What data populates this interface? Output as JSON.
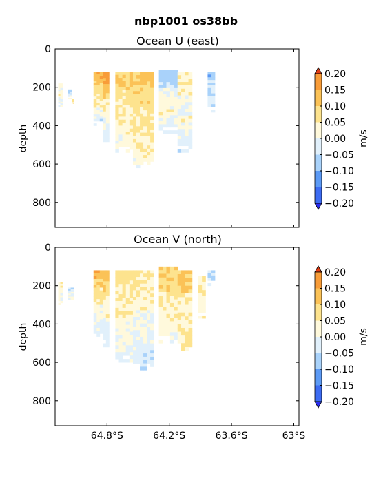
{
  "figure": {
    "title": "nbp1001 os38bb"
  },
  "chart_data": [
    {
      "type": "heatmap",
      "title": "Ocean U (east)",
      "xlabel": "",
      "ylabel": "depth",
      "xlim": [
        -65.3,
        -62.95
      ],
      "ylim": [
        930,
        0
      ],
      "y_ticks": [
        0,
        200,
        400,
        600,
        800
      ],
      "y_tick_labels": [
        "0",
        "200",
        "400",
        "600",
        "800"
      ],
      "x_ticks": [
        -64.8,
        -64.2,
        -63.6,
        -63.0
      ],
      "x_tick_labels": [],
      "colorbar": {
        "label": "m/s",
        "levels": [
          -0.2,
          -0.15,
          -0.1,
          -0.05,
          0.0,
          0.05,
          0.1,
          0.15,
          0.2
        ],
        "tick_labels": [
          "0.20",
          "0.15",
          "0.10",
          "0.05",
          "0.00",
          "−0.05",
          "−0.10",
          "−0.15",
          "−0.20"
        ],
        "colors": [
          "#2a2cf0",
          "#3d6cf2",
          "#5c9af5",
          "#a9d2fa",
          "#e1f0fb",
          "#fff9dc",
          "#fde38e",
          "#fbc257",
          "#f89c38",
          "#f26b22",
          "#e33d14"
        ]
      },
      "sections": [
        {
          "lon0": -65.27,
          "lon1": -65.23,
          "top": 180,
          "bottom": 300,
          "profile": [
            0.02,
            0.01,
            0.03,
            0.0,
            -0.01
          ]
        },
        {
          "lon0": -65.18,
          "lon1": -65.14,
          "top": 210,
          "bottom": 260,
          "profile": [
            -0.04,
            -0.03,
            0.02
          ]
        },
        {
          "lon0": -65.14,
          "lon1": -65.12,
          "top": 260,
          "bottom": 285,
          "profile": [
            0.08,
            0.1
          ]
        },
        {
          "lon0": -64.93,
          "lon1": -64.84,
          "top": 120,
          "bottom": 400,
          "profile": [
            0.14,
            0.12,
            0.09,
            0.06,
            0.04,
            0.02,
            -0.01,
            -0.03
          ]
        },
        {
          "lon0": -64.84,
          "lon1": -64.78,
          "top": 120,
          "bottom": 500,
          "profile": [
            0.17,
            0.13,
            0.08,
            0.05,
            0.03,
            0.0,
            -0.02,
            -0.04
          ]
        },
        {
          "lon0": -64.72,
          "lon1": -64.55,
          "top": 120,
          "bottom": 540,
          "profile": [
            0.09,
            0.08,
            0.07,
            0.06,
            0.05,
            0.04,
            0.03,
            0.02,
            0.01
          ]
        },
        {
          "lon0": -64.55,
          "lon1": -64.35,
          "top": 120,
          "bottom": 620,
          "profile": [
            0.1,
            0.09,
            0.08,
            0.07,
            0.06,
            0.06,
            0.05,
            0.04,
            0.03,
            0.02
          ]
        },
        {
          "lon0": -64.3,
          "lon1": -64.12,
          "top": 110,
          "bottom": 440,
          "profile": [
            -0.07,
            -0.05,
            -0.02,
            0.02,
            0.04,
            0.01,
            -0.03
          ]
        },
        {
          "lon0": -64.12,
          "lon1": -63.98,
          "top": 120,
          "bottom": 540,
          "profile": [
            0.03,
            0.05,
            0.02,
            -0.01,
            0.03,
            0.01,
            -0.02,
            -0.04
          ]
        },
        {
          "lon0": -63.83,
          "lon1": -63.76,
          "top": 120,
          "bottom": 330,
          "profile": [
            -0.08,
            -0.06,
            -0.04,
            -0.02,
            -0.05
          ]
        }
      ]
    },
    {
      "type": "heatmap",
      "title": "Ocean V (north)",
      "xlabel": "",
      "ylabel": "depth",
      "xlim": [
        -65.3,
        -62.95
      ],
      "ylim": [
        930,
        0
      ],
      "y_ticks": [
        0,
        200,
        400,
        600,
        800
      ],
      "y_tick_labels": [
        "0",
        "200",
        "400",
        "600",
        "800"
      ],
      "x_ticks": [
        -64.8,
        -64.2,
        -63.6,
        -63.0
      ],
      "x_tick_labels": [
        "64.8°S",
        "64.2°S",
        "63.6°S",
        "63°S"
      ],
      "colorbar": {
        "label": "m/s",
        "levels": [
          -0.2,
          -0.15,
          -0.1,
          -0.05,
          0.0,
          0.05,
          0.1,
          0.15,
          0.2
        ],
        "tick_labels": [
          "0.20",
          "0.15",
          "0.10",
          "0.05",
          "0.00",
          "−0.05",
          "−0.10",
          "−0.15",
          "−0.20"
        ],
        "colors": [
          "#2a2cf0",
          "#3d6cf2",
          "#5c9af5",
          "#a9d2fa",
          "#e1f0fb",
          "#fff9dc",
          "#fde38e",
          "#fbc257",
          "#f89c38",
          "#f26b22",
          "#e33d14"
        ]
      },
      "sections": [
        {
          "lon0": -65.27,
          "lon1": -65.23,
          "top": 180,
          "bottom": 300,
          "profile": [
            0.03,
            0.02,
            0.01,
            0.02
          ]
        },
        {
          "lon0": -65.18,
          "lon1": -65.12,
          "top": 210,
          "bottom": 280,
          "profile": [
            -0.03,
            -0.02,
            0.01
          ]
        },
        {
          "lon0": -64.93,
          "lon1": -64.84,
          "top": 120,
          "bottom": 480,
          "profile": [
            0.13,
            0.1,
            0.07,
            0.04,
            0.02,
            0.0,
            -0.02,
            -0.01
          ]
        },
        {
          "lon0": -64.84,
          "lon1": -64.78,
          "top": 120,
          "bottom": 520,
          "profile": [
            0.11,
            0.09,
            0.06,
            0.04,
            0.01,
            -0.02,
            -0.03
          ]
        },
        {
          "lon0": -64.72,
          "lon1": -64.55,
          "top": 120,
          "bottom": 600,
          "profile": [
            0.07,
            0.06,
            0.05,
            0.04,
            0.03,
            0.02,
            0.01,
            0.0,
            -0.02
          ]
        },
        {
          "lon0": -64.55,
          "lon1": -64.35,
          "top": 120,
          "bottom": 640,
          "profile": [
            0.06,
            0.05,
            0.04,
            0.03,
            0.02,
            0.01,
            0.0,
            -0.02,
            -0.03,
            -0.04
          ]
        },
        {
          "lon0": -64.3,
          "lon1": -64.12,
          "top": 100,
          "bottom": 500,
          "profile": [
            0.1,
            0.08,
            0.06,
            0.04,
            0.03,
            0.02,
            0.01
          ]
        },
        {
          "lon0": -64.12,
          "lon1": -63.98,
          "top": 120,
          "bottom": 540,
          "profile": [
            0.12,
            0.09,
            0.05,
            0.04,
            0.03,
            0.05,
            0.06
          ]
        },
        {
          "lon0": -63.92,
          "lon1": -63.85,
          "top": 150,
          "bottom": 370,
          "profile": [
            0.03,
            0.06,
            0.04,
            0.02,
            0.05
          ]
        },
        {
          "lon0": -63.83,
          "lon1": -63.76,
          "top": 120,
          "bottom": 200,
          "profile": [
            -0.07,
            -0.05
          ]
        }
      ]
    }
  ]
}
